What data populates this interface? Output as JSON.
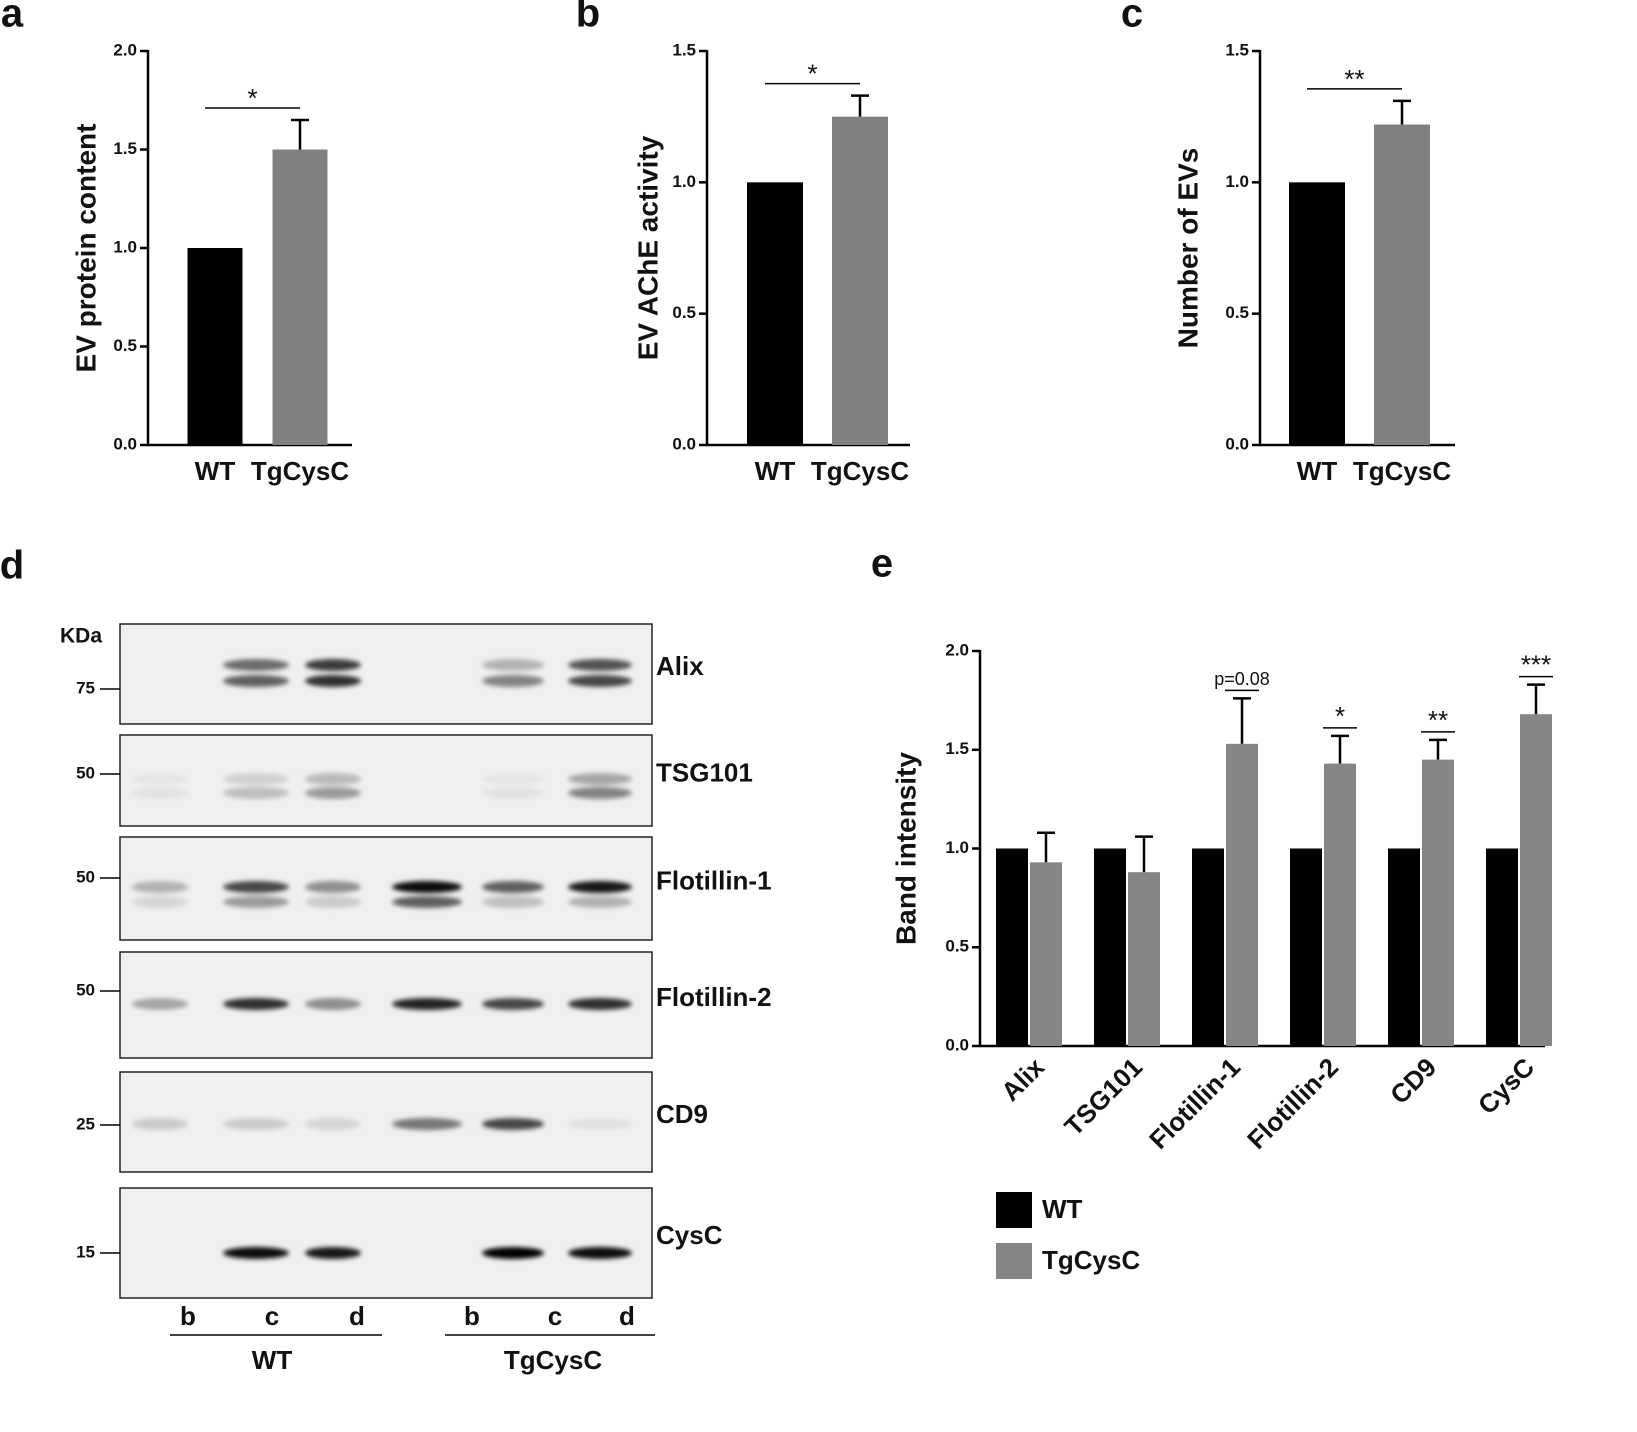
{
  "chart_data": [
    {
      "type": "bar",
      "panel": "a",
      "ylabel": "EV protein content",
      "categories": [
        "WT",
        "TgCysC"
      ],
      "values": [
        1.0,
        1.5
      ],
      "errors": [
        null,
        0.15
      ],
      "colors": [
        "#000000",
        "#808080"
      ],
      "annotation": "*",
      "ylim": [
        0,
        2
      ],
      "yticks": [
        {
          "value": 0,
          "label": "0.0"
        },
        0.5,
        {
          "value": 1,
          "label": "1.0"
        },
        1.5,
        {
          "value": 2,
          "label": "2.0"
        }
      ]
    },
    {
      "type": "bar",
      "panel": "b",
      "ylabel": "EV AChE activity",
      "categories": [
        "WT",
        "TgCysC"
      ],
      "values": [
        1.0,
        1.25
      ],
      "errors": [
        null,
        0.08
      ],
      "colors": [
        "#000000",
        "#808080"
      ],
      "annotation": "*",
      "ylim": [
        0,
        1.5
      ],
      "yticks": [
        {
          "value": 0,
          "label": "0.0"
        },
        0.5,
        {
          "value": 1,
          "label": "1.0"
        },
        1.5
      ]
    },
    {
      "type": "bar",
      "panel": "c",
      "ylabel": "Number of EVs",
      "categories": [
        "WT",
        "TgCysC"
      ],
      "values": [
        1.0,
        1.22
      ],
      "errors": [
        null,
        0.09
      ],
      "colors": [
        "#000000",
        "#808080"
      ],
      "annotation": "**",
      "ylim": [
        0,
        1.5
      ],
      "yticks": [
        {
          "value": 0,
          "label": "0.0"
        },
        0.5,
        {
          "value": 1,
          "label": "1.0"
        },
        1.5
      ]
    },
    {
      "type": "grouped_bar",
      "panel": "e",
      "ylabel": "Band intensity",
      "categories": [
        "Alix",
        "TSG101",
        "Flotillin-1",
        "Flotillin-2",
        "CD9",
        "CysC"
      ],
      "series": [
        {
          "name": "WT",
          "color": "#000000",
          "values": [
            1,
            1,
            1,
            1,
            1,
            1
          ],
          "errors": [
            null,
            null,
            null,
            null,
            null,
            null
          ]
        },
        {
          "name": "TgCysC",
          "color": "#858585",
          "values": [
            0.93,
            0.88,
            1.53,
            1.43,
            1.45,
            1.68
          ],
          "errors": [
            0.15,
            0.18,
            0.23,
            0.14,
            0.1,
            0.15
          ]
        }
      ],
      "annotations": [
        null,
        null,
        "p=0.08",
        "*",
        "**",
        "***"
      ],
      "legend": "bottom-left",
      "ylim": [
        0,
        2
      ],
      "yticks": [
        {
          "value": 0,
          "label": "0.0"
        },
        0.5,
        {
          "value": 1,
          "label": "1.0"
        },
        1.5,
        {
          "value": 2,
          "label": "2.0"
        }
      ]
    }
  ],
  "blot": {
    "panel": "d",
    "unit": "KDa",
    "rows": [
      {
        "protein": "Alix",
        "marker": "75"
      },
      {
        "protein": "TSG101",
        "marker": "50"
      },
      {
        "protein": "Flotillin-1",
        "marker": "50"
      },
      {
        "protein": "Flotillin-2",
        "marker": "50"
      },
      {
        "protein": "CD9",
        "marker": "25"
      },
      {
        "protein": "CysC",
        "marker": "15"
      }
    ],
    "lanes": [
      "b",
      "c",
      "d",
      "b",
      "c",
      "d"
    ],
    "groups": [
      "WT",
      "TgCysC"
    ]
  }
}
